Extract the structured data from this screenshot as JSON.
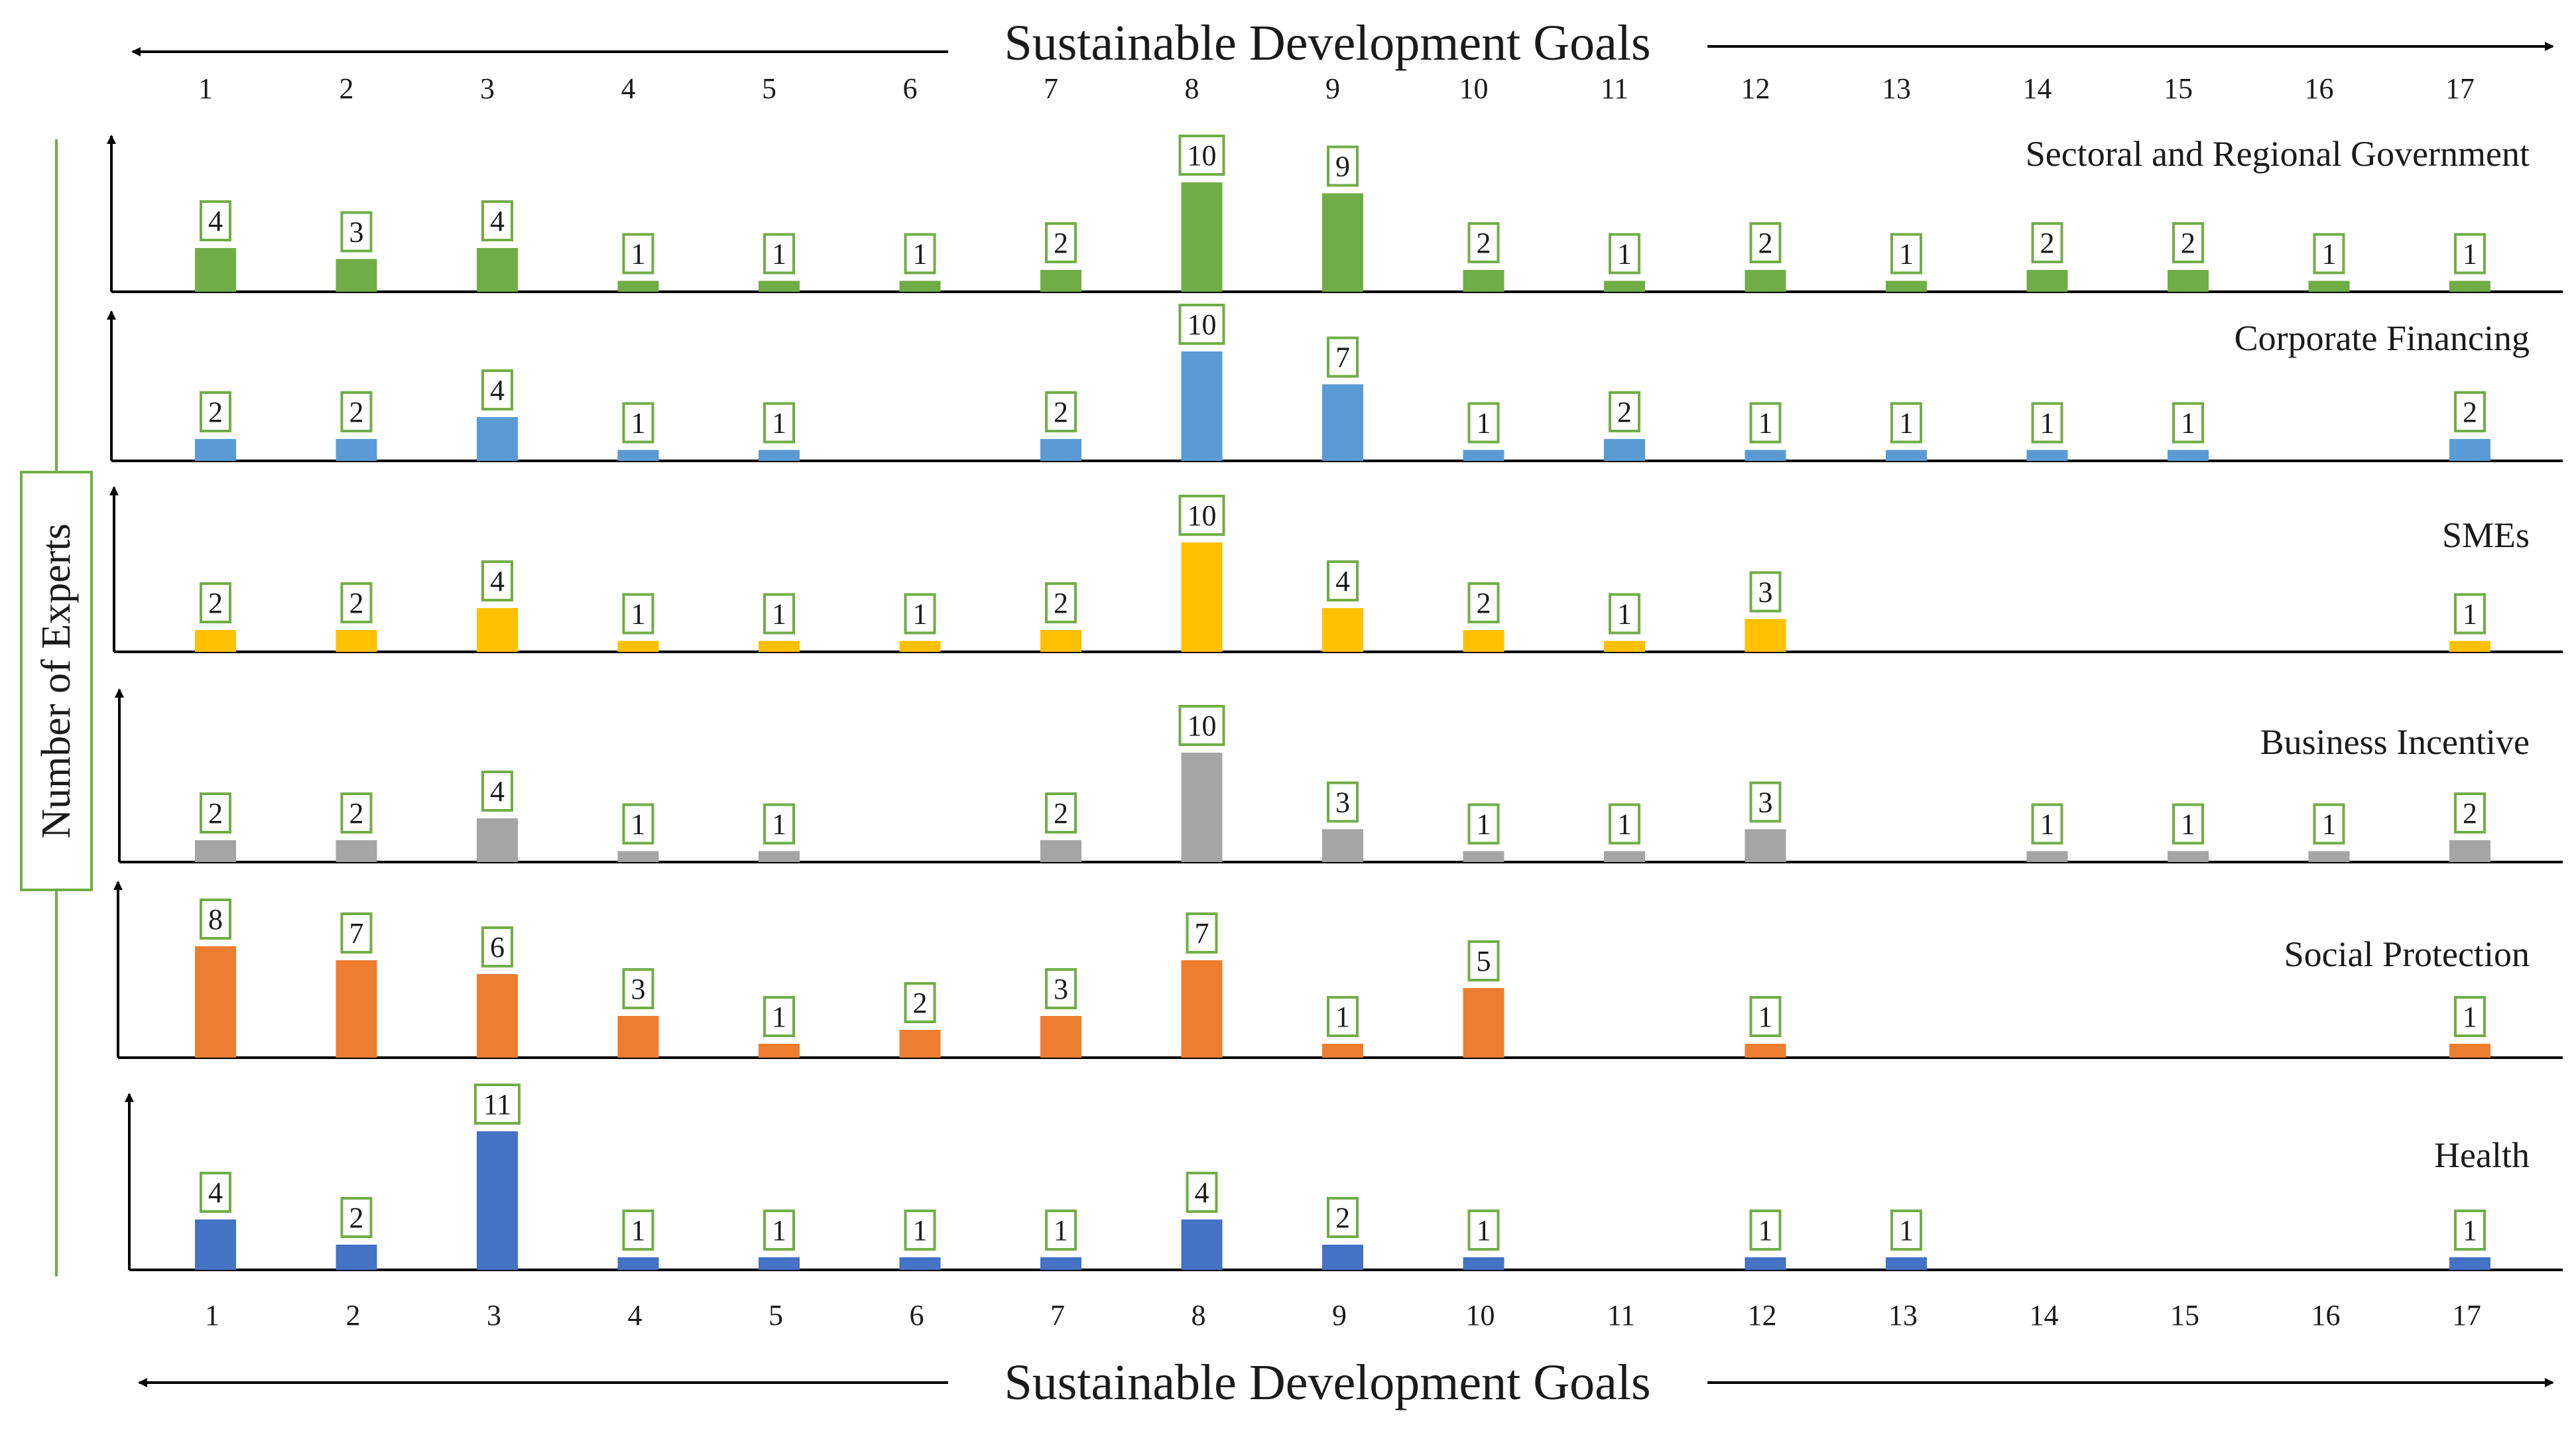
{
  "chart_data": {
    "type": "bar",
    "title": "Sustainable Development Goals",
    "xlabel": "Sustainable Development Goals",
    "ylabel": "Number of Experts",
    "categories": [
      "1",
      "2",
      "3",
      "4",
      "5",
      "6",
      "7",
      "8",
      "9",
      "10",
      "11",
      "12",
      "13",
      "14",
      "15",
      "16",
      "17"
    ],
    "panels": [
      {
        "name": "Sectoral and Regional Government",
        "color": "#70ad47",
        "values": [
          4,
          3,
          4,
          1,
          1,
          1,
          2,
          10,
          9,
          2,
          1,
          2,
          1,
          2,
          2,
          1,
          1
        ]
      },
      {
        "name": "Corporate Financing",
        "color": "#5b9bd5",
        "values": [
          2,
          2,
          4,
          1,
          1,
          null,
          2,
          10,
          7,
          1,
          2,
          1,
          1,
          1,
          1,
          null,
          2
        ]
      },
      {
        "name": "SMEs",
        "color": "#ffc000",
        "values": [
          2,
          2,
          4,
          1,
          1,
          1,
          2,
          10,
          4,
          2,
          1,
          3,
          null,
          null,
          null,
          null,
          1
        ]
      },
      {
        "name": "Business Incentive",
        "color": "#a5a5a5",
        "values": [
          2,
          2,
          4,
          1,
          1,
          null,
          2,
          10,
          3,
          1,
          1,
          3,
          null,
          1,
          1,
          1,
          2
        ]
      },
      {
        "name": "Social Protection",
        "color": "#ed7d31",
        "values": [
          8,
          7,
          6,
          3,
          1,
          2,
          3,
          7,
          1,
          5,
          null,
          1,
          null,
          null,
          null,
          null,
          1
        ]
      },
      {
        "name": "Health",
        "color": "#4472c4",
        "values": [
          4,
          2,
          11,
          1,
          1,
          1,
          1,
          4,
          2,
          1,
          null,
          1,
          1,
          null,
          null,
          null,
          1
        ]
      }
    ]
  }
}
